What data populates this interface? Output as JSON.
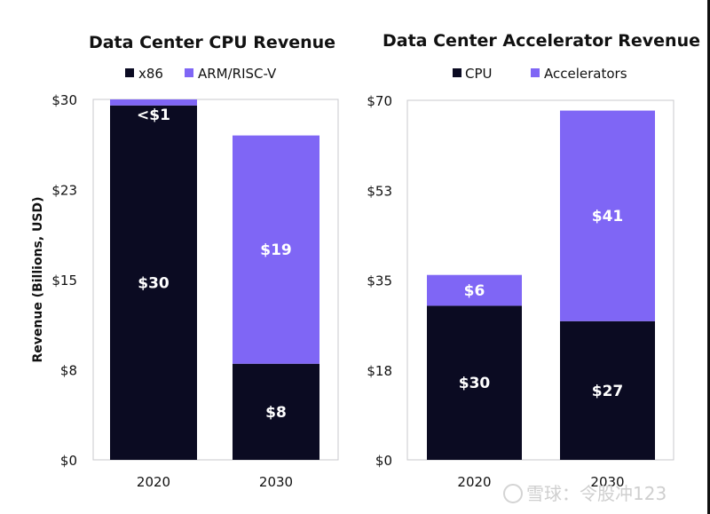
{
  "colors": {
    "dark": "#0b0b22",
    "purple": "#7f66f5",
    "frame": "#c8c8cc"
  },
  "watermark": "雪球：令股冲123",
  "chart_data": [
    {
      "type": "bar",
      "stacked": true,
      "title": "Data Center CPU Revenue",
      "ylabel": "Revenue (Billions, USD)",
      "xlabel": "",
      "ylim": [
        0,
        30
      ],
      "yticks": [
        0,
        7.5,
        15,
        22.5,
        30
      ],
      "ytick_labels": [
        "$0",
        "$8",
        "$15",
        "$23",
        "$30"
      ],
      "categories": [
        "2020",
        "2030"
      ],
      "legend": "top",
      "series": [
        {
          "name": "x86",
          "color": "#0b0b22",
          "values": [
            29.5,
            8
          ],
          "labels": [
            "$30",
            "$8"
          ]
        },
        {
          "name": "ARM/RISC-V",
          "color": "#7f66f5",
          "values": [
            0.5,
            19
          ],
          "labels": [
            "<$1",
            "$19"
          ]
        }
      ]
    },
    {
      "type": "bar",
      "stacked": true,
      "title": "Data Center Accelerator Revenue",
      "ylabel": "",
      "xlabel": "",
      "ylim": [
        0,
        70
      ],
      "yticks": [
        0,
        17.5,
        35,
        52.5,
        70
      ],
      "ytick_labels": [
        "$0",
        "$18",
        "$35",
        "$53",
        "$70"
      ],
      "categories": [
        "2020",
        "2030"
      ],
      "legend": "top",
      "series": [
        {
          "name": "CPU",
          "color": "#0b0b22",
          "values": [
            30,
            27
          ],
          "labels": [
            "$30",
            "$27"
          ]
        },
        {
          "name": "Accelerators",
          "color": "#7f66f5",
          "values": [
            6,
            41
          ],
          "labels": [
            "$6",
            "$41"
          ]
        }
      ]
    }
  ]
}
